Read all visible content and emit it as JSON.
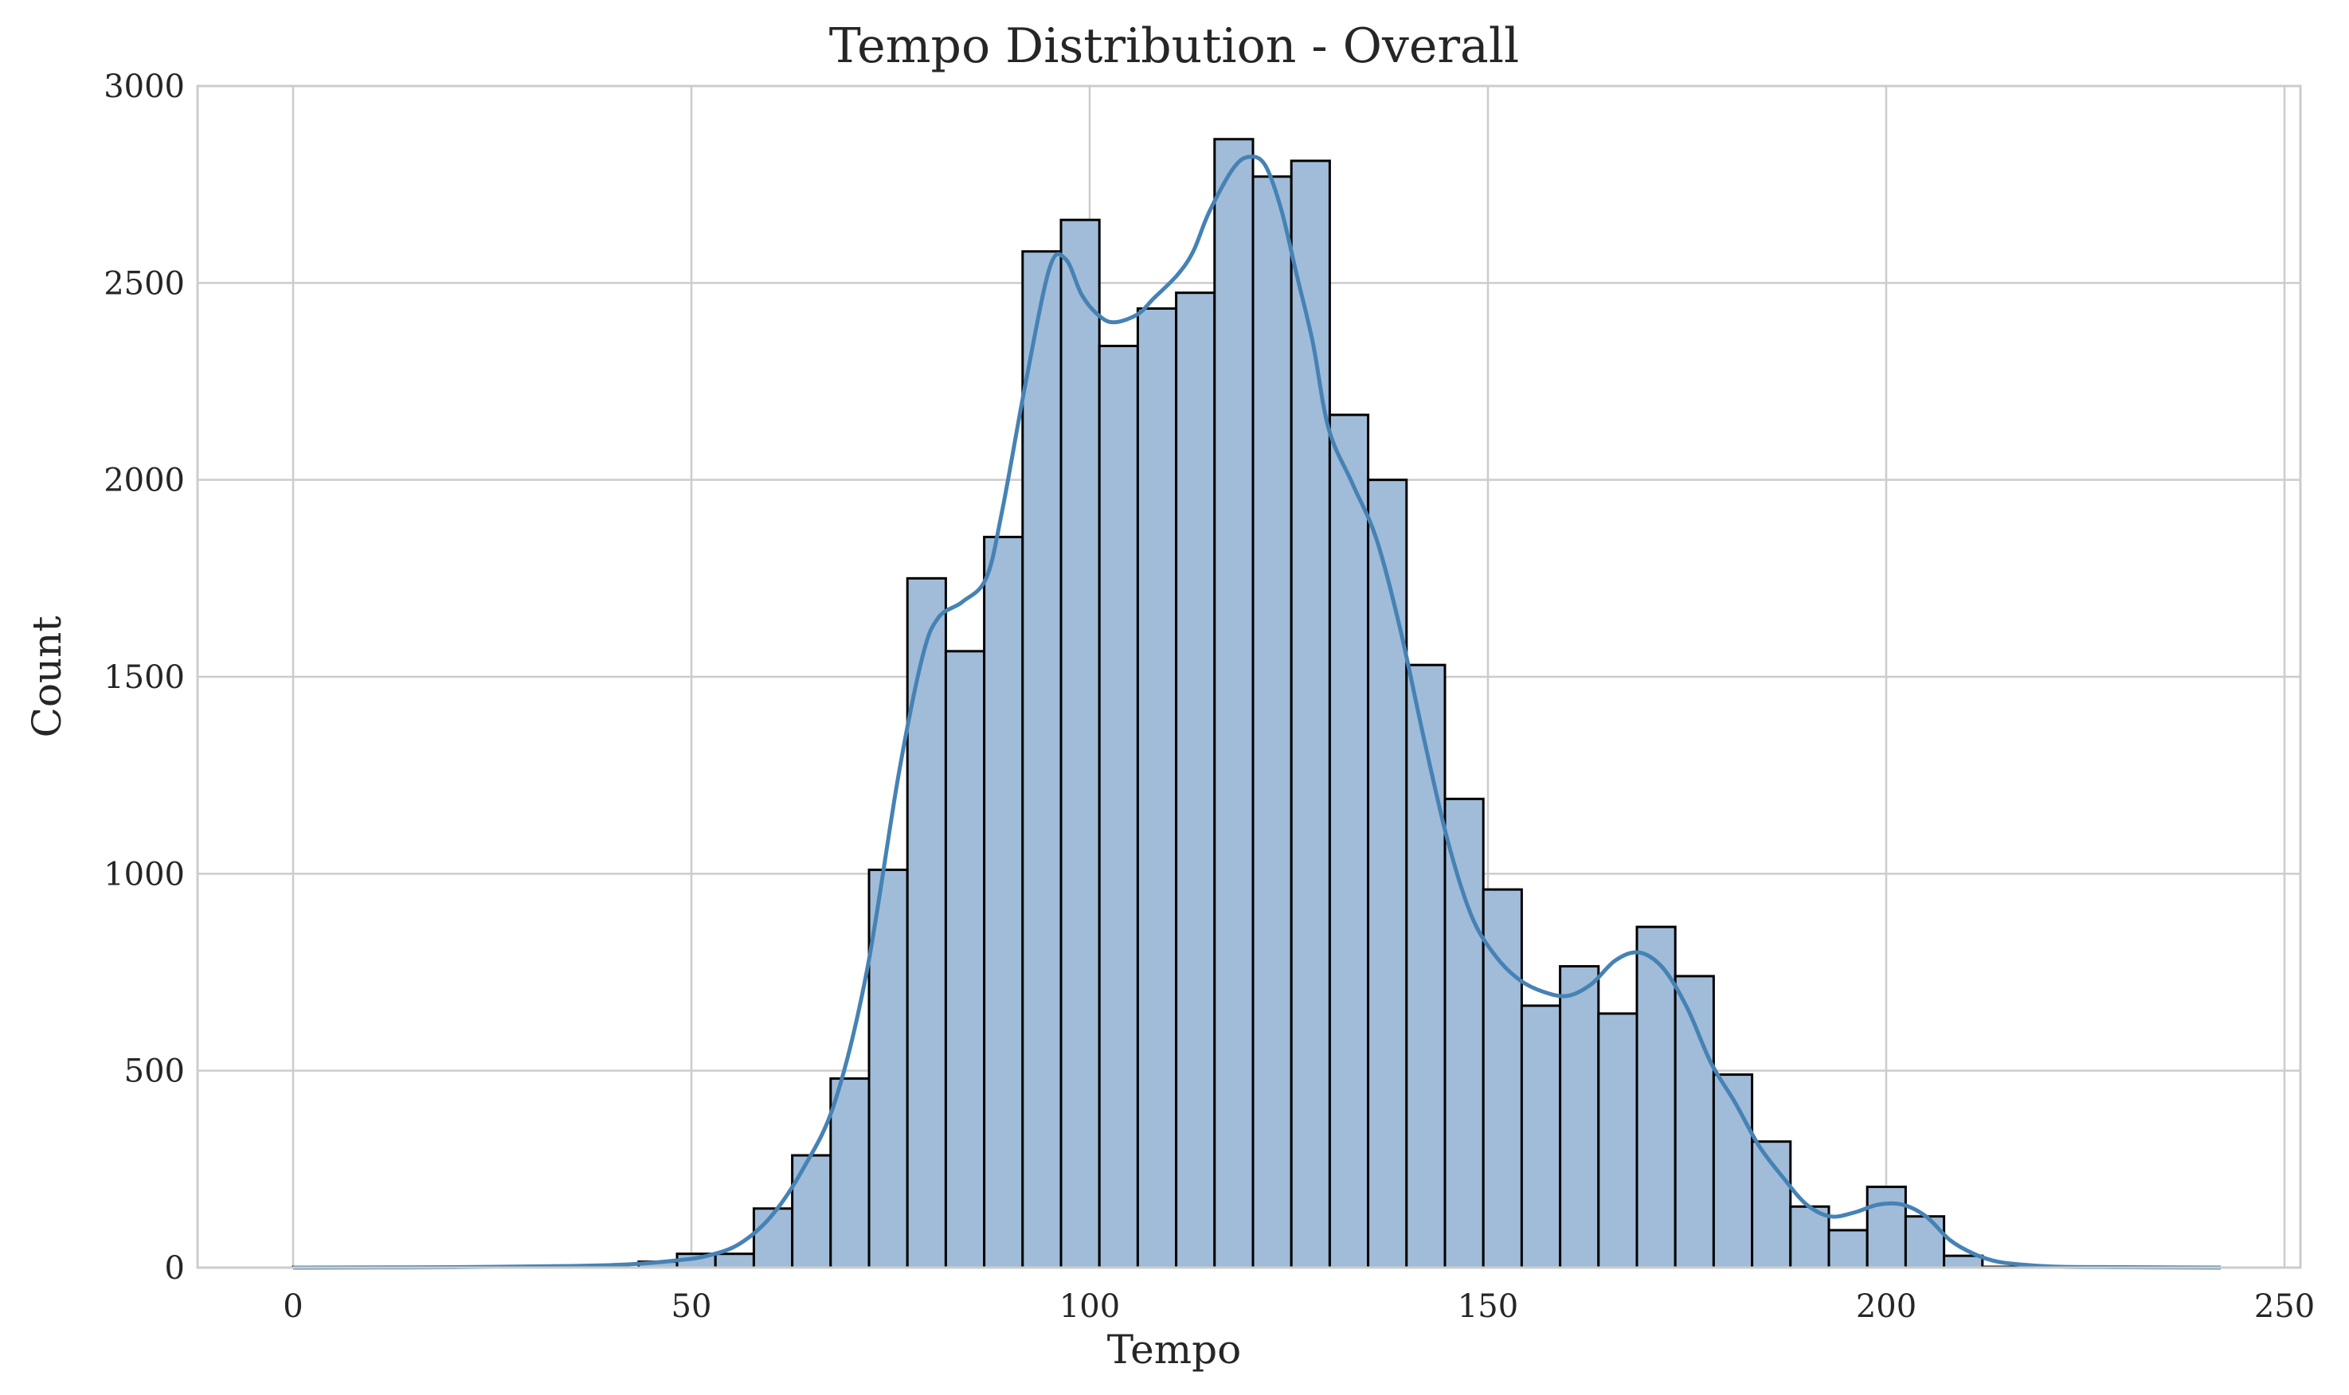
{
  "chart_data": {
    "type": "bar",
    "title": "Tempo Distribution - Overall",
    "xlabel": "Tempo",
    "ylabel": "Count",
    "xlim": [
      -12,
      252
    ],
    "ylim": [
      0,
      3000
    ],
    "xticks": [
      0,
      50,
      100,
      150,
      200,
      250
    ],
    "yticks": [
      0,
      500,
      1000,
      1500,
      2000,
      2500,
      3000
    ],
    "grid": true,
    "bin_start": 0,
    "bin_width": 4.82,
    "counts": [
      2,
      0,
      0,
      0,
      0,
      0,
      0,
      0,
      0,
      15,
      35,
      35,
      150,
      285,
      480,
      1010,
      1750,
      1565,
      1855,
      2580,
      2660,
      2340,
      2435,
      2475,
      2865,
      2770,
      2810,
      2165,
      2000,
      1530,
      1190,
      960,
      665,
      765,
      645,
      865,
      740,
      490,
      320,
      155,
      95,
      205,
      130,
      30,
      2,
      0,
      0,
      0,
      0,
      1
    ],
    "kde": {
      "x": [
        0,
        20,
        35,
        42,
        48,
        52,
        56,
        60,
        64,
        68,
        72,
        76,
        79,
        81,
        84,
        87,
        89,
        92,
        95,
        97,
        99,
        101,
        103,
        106,
        108,
        111,
        113,
        115,
        118,
        120,
        122,
        124,
        126,
        128,
        130,
        133,
        136,
        139,
        142,
        145,
        148,
        151,
        154,
        157,
        160,
        163,
        166,
        169,
        172,
        175,
        178,
        181,
        184,
        187,
        190,
        193,
        196,
        199,
        202,
        205,
        208,
        211,
        214,
        218,
        222,
        230,
        242
      ],
      "y": [
        0,
        1,
        4,
        8,
        18,
        30,
        60,
        130,
        250,
        420,
        750,
        1250,
        1550,
        1650,
        1690,
        1750,
        1920,
        2250,
        2540,
        2560,
        2470,
        2420,
        2400,
        2420,
        2460,
        2520,
        2580,
        2680,
        2790,
        2820,
        2800,
        2690,
        2520,
        2350,
        2130,
        1990,
        1850,
        1620,
        1340,
        1080,
        890,
        790,
        730,
        700,
        690,
        720,
        780,
        800,
        760,
        660,
        520,
        420,
        310,
        230,
        160,
        130,
        140,
        160,
        160,
        130,
        70,
        35,
        15,
        6,
        2,
        1,
        0
      ]
    },
    "colors": {
      "bar_fill": "#a0bcd9",
      "bar_edge": "#000000",
      "kde_line": "#4682b4",
      "grid": "#cccccc",
      "frame": "#cccccc"
    }
  }
}
